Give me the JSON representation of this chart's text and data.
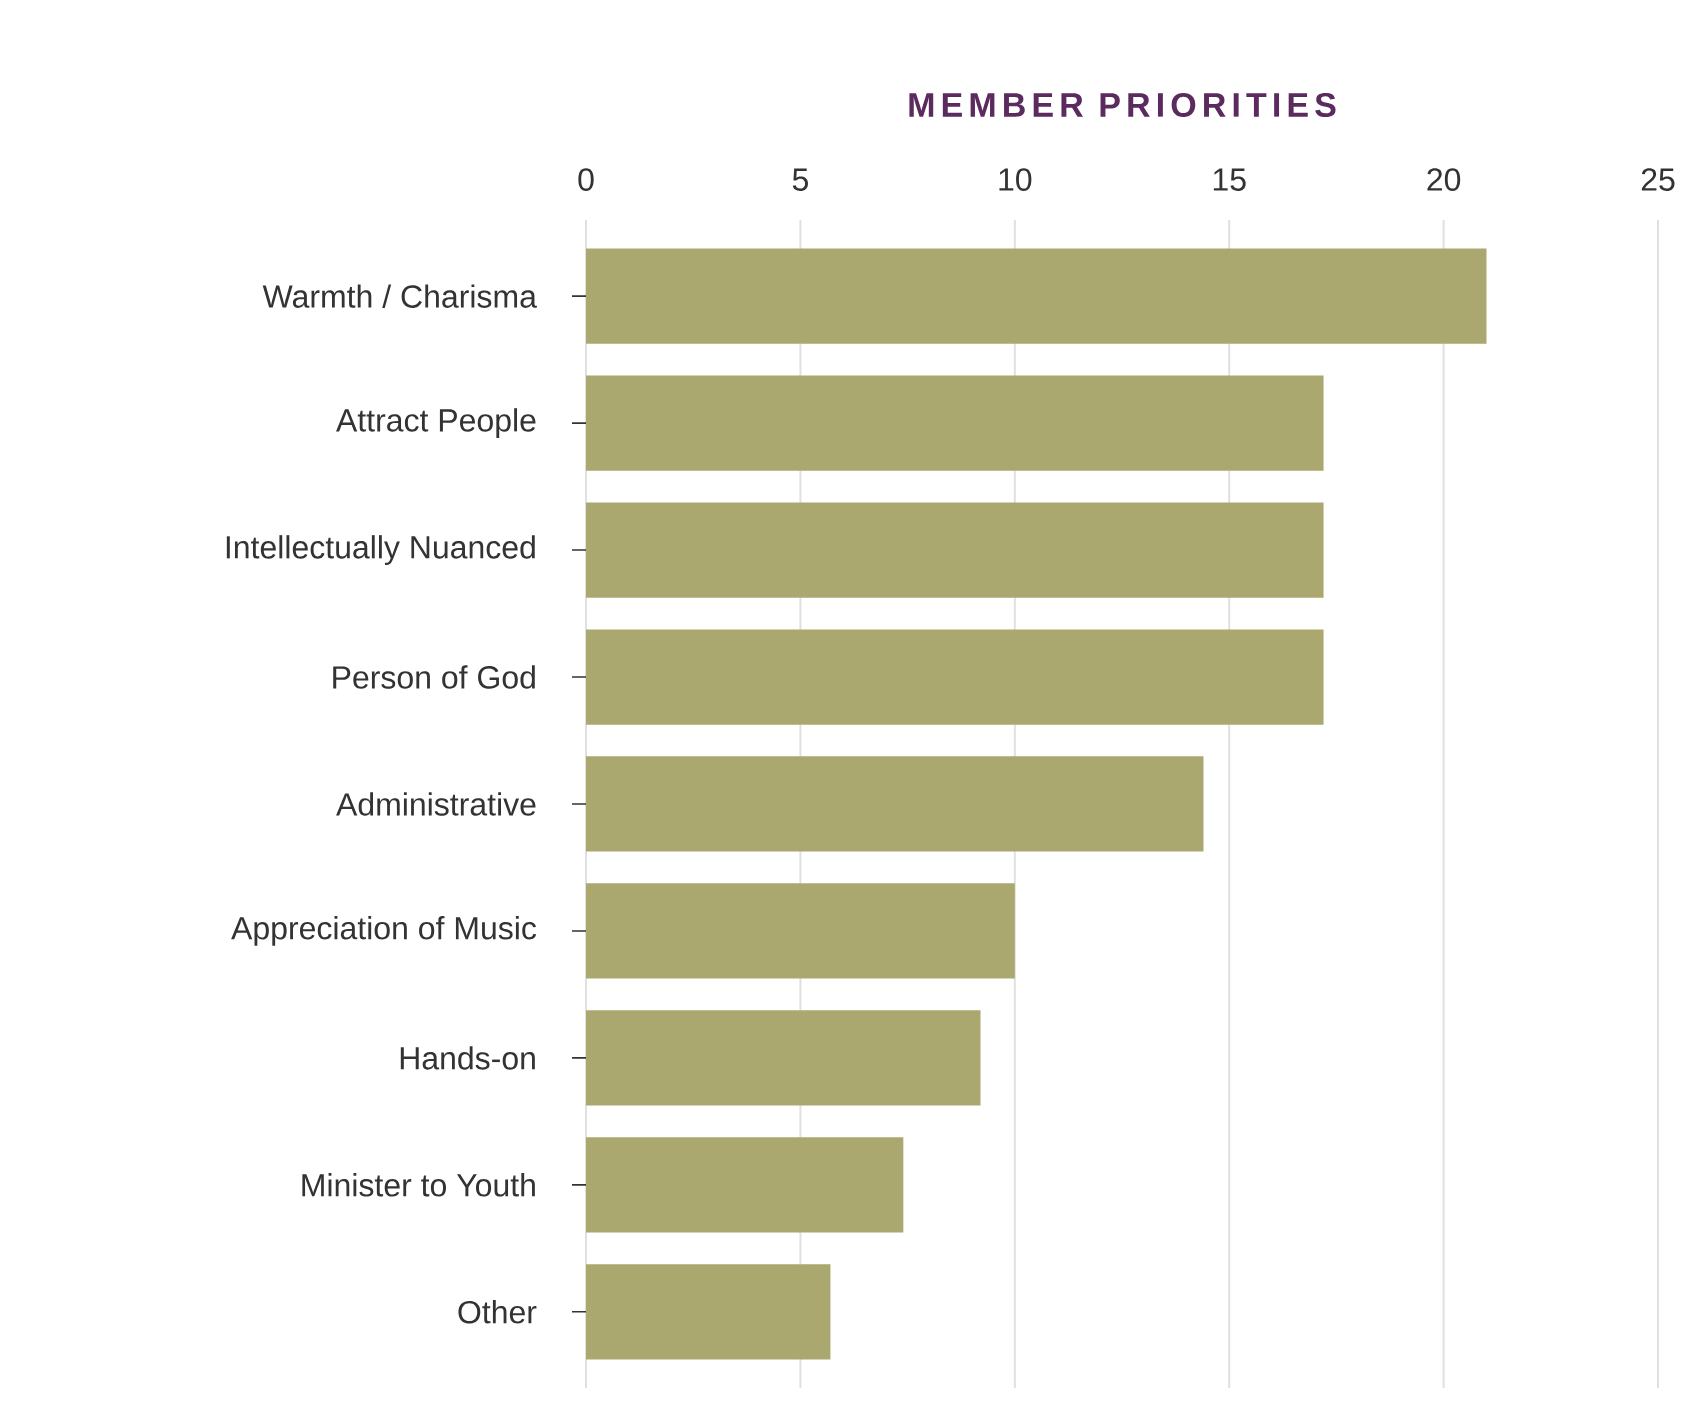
{
  "chart_data": {
    "type": "bar",
    "orientation": "horizontal",
    "title": "MEMBER PRIORITIES",
    "categories": [
      "Warmth / Charisma",
      "Attract People",
      "Intellectually Nuanced",
      "Person of God",
      "Administrative",
      "Appreciation of Music",
      "Hands-on",
      "Minister to Youth",
      "Other"
    ],
    "values": [
      21,
      17.2,
      17.2,
      17.2,
      14.4,
      10,
      9.2,
      7.4,
      5.7
    ],
    "color": "#aaa86e",
    "xlim": [
      0,
      25
    ],
    "xticks": [
      0,
      5,
      10,
      15,
      20,
      25
    ],
    "grid": "x"
  }
}
